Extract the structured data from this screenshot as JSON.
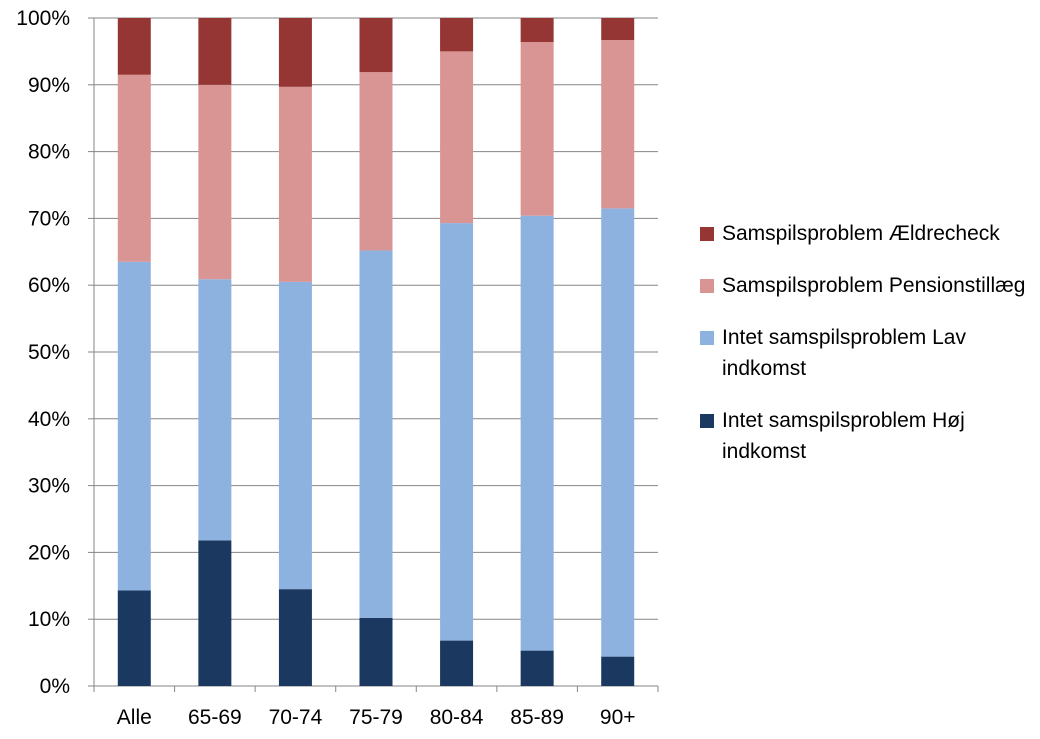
{
  "chart_data": {
    "type": "bar",
    "stacked": true,
    "categories": [
      "Alle",
      "65-69",
      "70-74",
      "75-79",
      "80-84",
      "85-89",
      "90+"
    ],
    "yticks": [
      "0%",
      "10%",
      "20%",
      "30%",
      "40%",
      "50%",
      "60%",
      "70%",
      "80%",
      "90%",
      "100%"
    ],
    "ylim": [
      0,
      100
    ],
    "grid": true,
    "legend_position": "right",
    "series": [
      {
        "name": "Intet samspilsproblem Høj indkomst",
        "color": "#1a3860",
        "values": [
          14.3,
          21.8,
          14.5,
          10.2,
          6.8,
          5.3,
          4.4
        ]
      },
      {
        "name": "Intet samspilsproblem Lav indkomst",
        "color": "#8eb2e0",
        "values": [
          49.2,
          39.1,
          46.0,
          55.0,
          62.5,
          65.1,
          67.1
        ]
      },
      {
        "name": "Samspilsproblem Pensionstillæg",
        "color": "#d99593",
        "values": [
          28.0,
          29.1,
          29.2,
          26.7,
          25.7,
          26.0,
          25.2
        ]
      },
      {
        "name": "Samspilsproblem Ældrecheck",
        "color": "#953635",
        "values": [
          8.5,
          10.0,
          10.3,
          8.1,
          5.0,
          3.6,
          3.3
        ]
      }
    ]
  },
  "legend": {
    "items": [
      {
        "label": "Samspilsproblem Ældrecheck",
        "color": "#953635"
      },
      {
        "label": "Samspilsproblem Pensionstillæg",
        "color": "#d99593"
      },
      {
        "label": "Intet samspilsproblem Lav indkomst",
        "color": "#8eb2e0"
      },
      {
        "label": "Intet samspilsproblem Høj indkomst",
        "color": "#1a3860"
      }
    ]
  }
}
